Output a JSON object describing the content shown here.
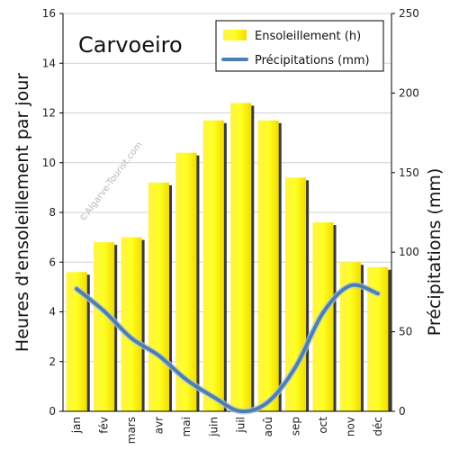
{
  "chart_data": {
    "type": "bar",
    "title": "Carvoeiro",
    "watermark": "©Algarve-Tourist.com",
    "categories": [
      "jan",
      "fév",
      "mars",
      "avr",
      "mai",
      "juin",
      "juil",
      "aoû",
      "sep",
      "oct",
      "nov",
      "déc"
    ],
    "series": [
      {
        "name": "Ensoleillement (h)",
        "type": "bar",
        "axis": "left",
        "values": [
          5.6,
          6.8,
          7.0,
          9.2,
          10.4,
          11.7,
          12.4,
          11.7,
          9.4,
          7.6,
          6.0,
          5.8
        ],
        "color": "#ffff00"
      },
      {
        "name": "Précipitations (mm)",
        "type": "line",
        "axis": "right",
        "values": [
          77,
          63,
          46,
          35,
          20,
          9,
          0,
          6,
          28,
          62,
          79,
          74
        ],
        "color": "#4a7fb0"
      }
    ],
    "ylabel": "Heures d'ensoleillement par jour",
    "y2label": "Précipitations (mm)",
    "ylim": [
      0,
      16
    ],
    "y2lim": [
      0,
      250
    ],
    "yticks": [
      0,
      2,
      4,
      6,
      8,
      10,
      12,
      14,
      16
    ],
    "y2ticks": [
      0,
      50,
      100,
      150,
      200,
      250
    ],
    "grid": true,
    "legend": "top-right"
  }
}
